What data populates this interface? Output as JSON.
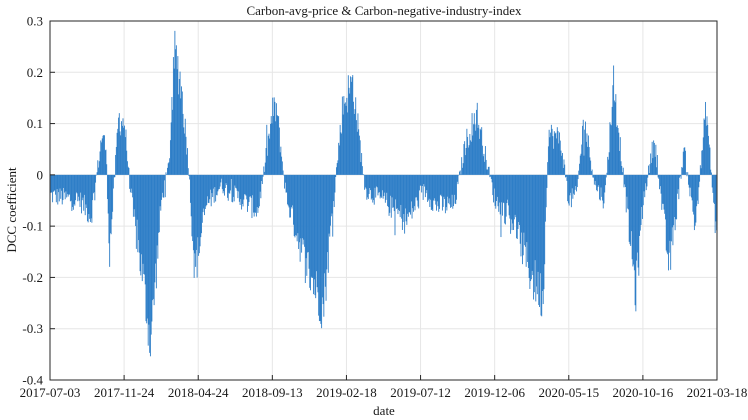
{
  "chart_data": {
    "type": "bar",
    "title": "Carbon-avg-price & Carbon-negative-industry-index",
    "xlabel": "date",
    "ylabel": "DCC coefficient",
    "ylim": [
      -0.4,
      0.3
    ],
    "yticks": [
      "0.3",
      "0.2",
      "0.1",
      "0",
      "-0.1",
      "-0.2",
      "-0.3",
      "-0.4"
    ],
    "ytick_values": [
      0.3,
      0.2,
      0.1,
      0,
      -0.1,
      -0.2,
      -0.3,
      -0.4
    ],
    "xticks": [
      "2017-07-03",
      "2017-11-24",
      "2018-04-24",
      "2018-09-13",
      "2019-02-18",
      "2019-07-12",
      "2019-12-06",
      "2020-05-15",
      "2020-10-16",
      "2021-03-18"
    ],
    "grid": true,
    "series_color": "#2e7ec7",
    "n_points": 900,
    "series": [
      {
        "name": "DCC coefficient",
        "note": "approximate daily values read from the plot; dense bar series, represented by keyframe envelope",
        "keyframes_index": [
          0,
          40,
          55,
          70,
          75,
          80,
          92,
          100,
          108,
          112,
          125,
          135,
          150,
          160,
          168,
          176,
          186,
          195,
          210,
          230,
          260,
          280,
          300,
          305,
          318,
          340,
          368,
          382,
          395,
          408,
          425,
          450,
          480,
          505,
          520,
          545,
          560,
          575,
          600,
          625,
          650,
          665,
          672,
          688,
          700,
          710,
          720,
          735,
          748,
          760,
          790,
          800,
          815,
          835,
          855,
          870,
          885,
          898
        ],
        "keyframes_value": [
          -0.04,
          -0.05,
          -0.08,
          0.08,
          0.05,
          -0.15,
          0.11,
          0.1,
          -0.03,
          -0.08,
          -0.2,
          -0.33,
          -0.05,
          0.02,
          0.24,
          0.18,
          0.03,
          -0.19,
          -0.06,
          -0.02,
          -0.05,
          -0.07,
          0.12,
          0.13,
          -0.04,
          -0.15,
          -0.26,
          -0.05,
          0.14,
          0.18,
          -0.03,
          -0.05,
          -0.09,
          -0.03,
          -0.06,
          -0.06,
          0.06,
          0.12,
          -0.05,
          -0.09,
          -0.2,
          -0.24,
          0.08,
          0.07,
          -0.05,
          -0.04,
          0.11,
          -0.02,
          -0.05,
          0.18,
          -0.23,
          -0.05,
          0.07,
          -0.18,
          0.05,
          -0.1,
          0.13,
          -0.11
        ]
      }
    ]
  }
}
